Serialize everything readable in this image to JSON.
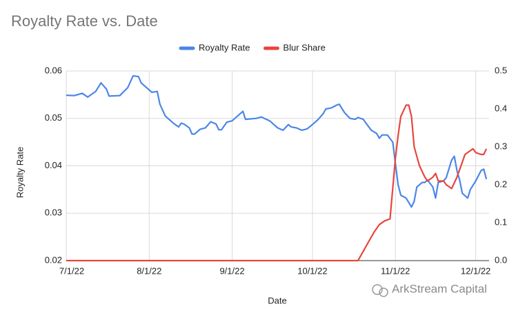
{
  "chart_data": {
    "type": "line",
    "title": "Royalty Rate vs. Date",
    "y_label": "Royalty Rate",
    "x_label": "Date",
    "watermark": "ArkStream Capital",
    "legend": "top",
    "grid": true,
    "xlim": [
      "2022-07-01",
      "2022-12-06"
    ],
    "xticks": [
      {
        "value": "2022-07-01",
        "label": "7/1/22"
      },
      {
        "value": "2022-08-01",
        "label": "8/1/22"
      },
      {
        "value": "2022-09-01",
        "label": "9/1/22"
      },
      {
        "value": "2022-10-01",
        "label": "10/1/22"
      },
      {
        "value": "2022-11-01",
        "label": "11/1/22"
      },
      {
        "value": "2022-12-01",
        "label": "12/1/22"
      }
    ],
    "ylim": [
      0.02,
      0.06
    ],
    "yticks": [
      0.02,
      0.03,
      0.04,
      0.05,
      0.06
    ],
    "y2lim": [
      0,
      0.5
    ],
    "y2ticks": [
      {
        "value": 0,
        "label": "0.0"
      },
      0.1,
      0.2,
      0.3,
      0.4,
      0.5
    ],
    "series": [
      {
        "name": "Royalty Rate",
        "color": "#4a86e8",
        "axis": "y",
        "x": [
          "2022-07-01",
          "2022-07-04",
          "2022-07-07",
          "2022-07-09",
          "2022-07-12",
          "2022-07-14",
          "2022-07-16",
          "2022-07-17",
          "2022-07-21",
          "2022-07-24",
          "2022-07-26",
          "2022-07-28",
          "2022-07-29",
          "2022-07-31",
          "2022-08-02",
          "2022-08-04",
          "2022-08-05",
          "2022-08-07",
          "2022-08-10",
          "2022-08-12",
          "2022-08-13",
          "2022-08-14",
          "2022-08-16",
          "2022-08-17",
          "2022-08-18",
          "2022-08-20",
          "2022-08-22",
          "2022-08-24",
          "2022-08-26",
          "2022-08-27",
          "2022-08-28",
          "2022-08-30",
          "2022-09-01",
          "2022-09-03",
          "2022-09-05",
          "2022-09-06",
          "2022-09-08",
          "2022-09-10",
          "2022-09-12",
          "2022-09-13",
          "2022-09-15",
          "2022-09-17",
          "2022-09-18",
          "2022-09-20",
          "2022-09-22",
          "2022-09-23",
          "2022-09-25",
          "2022-09-27",
          "2022-09-29",
          "2022-10-01",
          "2022-10-03",
          "2022-10-05",
          "2022-10-06",
          "2022-10-08",
          "2022-10-10",
          "2022-10-11",
          "2022-10-13",
          "2022-10-15",
          "2022-10-17",
          "2022-10-18",
          "2022-10-20",
          "2022-10-21",
          "2022-10-23",
          "2022-10-25",
          "2022-10-26",
          "2022-10-27",
          "2022-10-29",
          "2022-10-31",
          "2022-11-01",
          "2022-11-02",
          "2022-11-03",
          "2022-11-05",
          "2022-11-07",
          "2022-11-08",
          "2022-11-09",
          "2022-11-11",
          "2022-11-12",
          "2022-11-13",
          "2022-11-15",
          "2022-11-16",
          "2022-11-17",
          "2022-11-19",
          "2022-11-20",
          "2022-11-22",
          "2022-11-23",
          "2022-11-24",
          "2022-11-25",
          "2022-11-26",
          "2022-11-28",
          "2022-11-29",
          "2022-12-01",
          "2022-12-03",
          "2022-12-04",
          "2022-12-05"
        ],
        "values": [
          0.0549,
          0.0548,
          0.0553,
          0.0545,
          0.0557,
          0.0575,
          0.0562,
          0.0547,
          0.0548,
          0.0565,
          0.059,
          0.0588,
          0.0575,
          0.0565,
          0.0555,
          0.0557,
          0.053,
          0.0505,
          0.049,
          0.0482,
          0.049,
          0.0488,
          0.048,
          0.0467,
          0.0467,
          0.0477,
          0.048,
          0.0493,
          0.0488,
          0.0476,
          0.0476,
          0.0492,
          0.0495,
          0.0505,
          0.0515,
          0.0498,
          0.0499,
          0.05,
          0.0503,
          0.05,
          0.0495,
          0.0485,
          0.048,
          0.0475,
          0.0487,
          0.0482,
          0.048,
          0.0475,
          0.0478,
          0.0487,
          0.0497,
          0.051,
          0.052,
          0.0522,
          0.0528,
          0.053,
          0.0512,
          0.05,
          0.0498,
          0.0502,
          0.0498,
          0.049,
          0.0475,
          0.0468,
          0.0458,
          0.0465,
          0.0465,
          0.045,
          0.0405,
          0.036,
          0.0338,
          0.0332,
          0.0313,
          0.0325,
          0.0355,
          0.0365,
          0.0365,
          0.037,
          0.0355,
          0.0332,
          0.0365,
          0.0368,
          0.0375,
          0.0412,
          0.042,
          0.039,
          0.037,
          0.0342,
          0.0332,
          0.035,
          0.0368,
          0.039,
          0.0393,
          0.0372
        ]
      },
      {
        "name": "Blur Share",
        "color": "#e8453c",
        "axis": "y2",
        "x": [
          "2022-07-01",
          "2022-10-18",
          "2022-10-20",
          "2022-10-22",
          "2022-10-24",
          "2022-10-26",
          "2022-10-28",
          "2022-10-30",
          "2022-11-01",
          "2022-11-02",
          "2022-11-03",
          "2022-11-04",
          "2022-11-05",
          "2022-11-06",
          "2022-11-07",
          "2022-11-08",
          "2022-11-10",
          "2022-11-12",
          "2022-11-13",
          "2022-11-15",
          "2022-11-16",
          "2022-11-17",
          "2022-11-19",
          "2022-11-20",
          "2022-11-22",
          "2022-11-24",
          "2022-11-26",
          "2022-11-27",
          "2022-11-29",
          "2022-11-30",
          "2022-12-01",
          "2022-12-03",
          "2022-12-04",
          "2022-12-05"
        ],
        "values": [
          0,
          0,
          0.025,
          0.05,
          0.075,
          0.095,
          0.105,
          0.11,
          0.27,
          0.33,
          0.38,
          0.395,
          0.41,
          0.41,
          0.38,
          0.3,
          0.25,
          0.22,
          0.21,
          0.22,
          0.23,
          0.21,
          0.21,
          0.2,
          0.19,
          0.22,
          0.26,
          0.28,
          0.29,
          0.295,
          0.285,
          0.28,
          0.28,
          0.295
        ]
      }
    ]
  }
}
